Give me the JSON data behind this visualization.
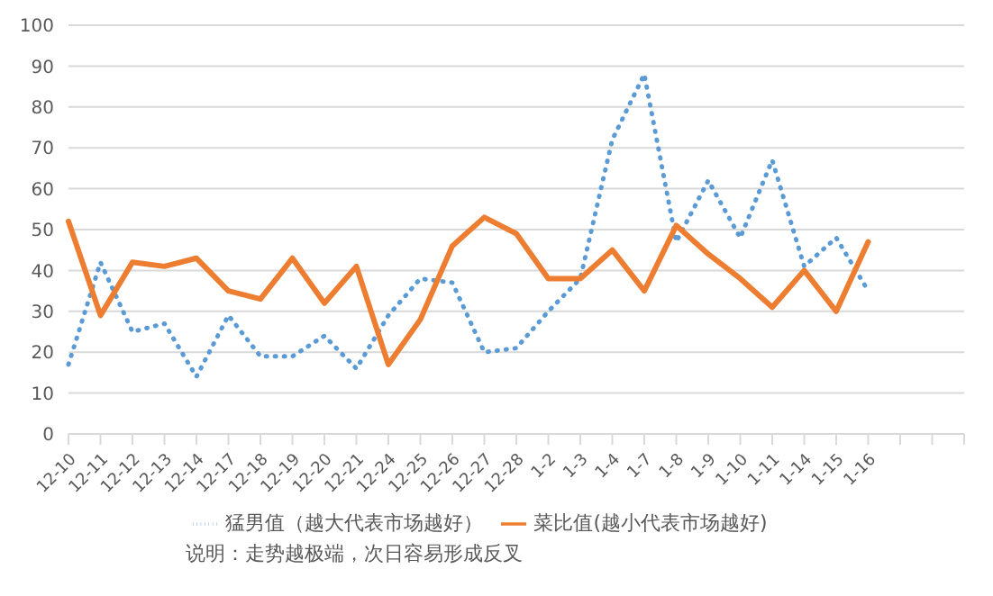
{
  "chart_data": {
    "type": "line",
    "categories": [
      "12-10",
      "12-11",
      "12-12",
      "12-13",
      "12-14",
      "12-17",
      "12-18",
      "12-19",
      "12-20",
      "12-21",
      "12-24",
      "12-25",
      "12-26",
      "12-27",
      "12-28",
      "1-2",
      "1-3",
      "1-4",
      "1-7",
      "1-8",
      "1-9",
      "1-10",
      "1-11",
      "1-14",
      "1-15",
      "1-16",
      null,
      null,
      null
    ],
    "series": [
      {
        "name": "猛男值（越大代表市场越好）",
        "color": "#5b9bd5",
        "line_style": "dotted",
        "values": [
          17,
          42,
          25,
          27,
          14,
          29,
          19,
          19,
          24,
          16,
          29,
          38,
          37,
          20,
          21,
          30,
          38,
          72,
          88,
          47,
          62,
          48,
          67,
          41,
          48,
          35,
          null,
          null,
          null
        ]
      },
      {
        "name": "菜比值(越小代表市场越好)",
        "color": "#ed7d31",
        "line_style": "solid",
        "values": [
          52,
          29,
          42,
          41,
          43,
          35,
          33,
          43,
          32,
          41,
          17,
          28,
          46,
          53,
          49,
          38,
          38,
          45,
          35,
          51,
          44,
          38,
          31,
          40,
          30,
          47,
          null,
          null,
          null
        ]
      }
    ],
    "ylim": [
      0,
      100
    ],
    "yticks": [
      0,
      10,
      20,
      30,
      40,
      50,
      60,
      70,
      80,
      90,
      100
    ],
    "grid": "y",
    "legend": "bottom",
    "marker": "none",
    "annotations": [
      "说明：走势越极端，次日容易形成反叉"
    ]
  }
}
